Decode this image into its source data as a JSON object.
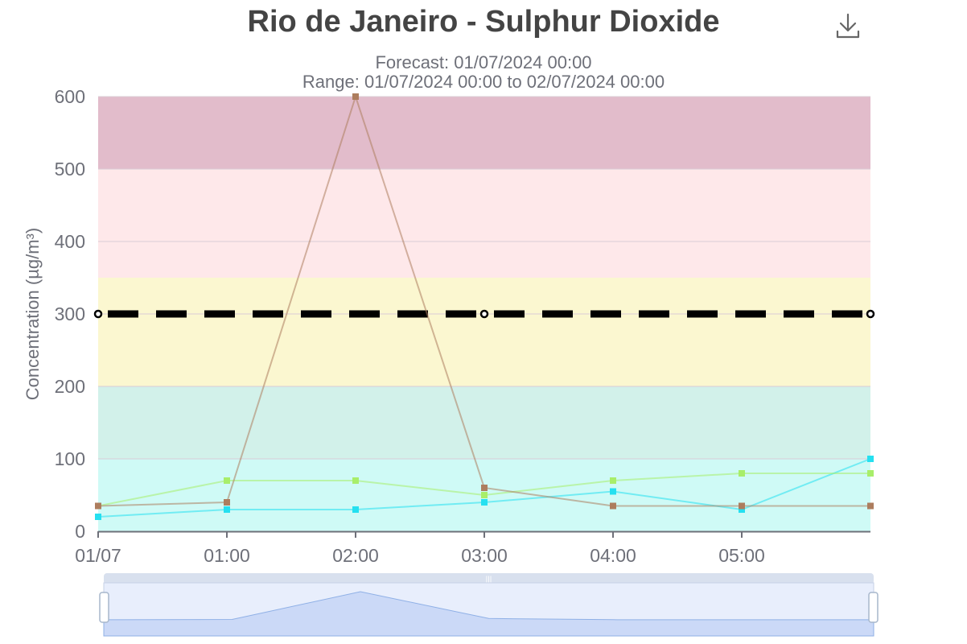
{
  "chart_data": {
    "type": "line",
    "title": "Rio de Janeiro - Sulphur Dioxide",
    "subtitle_lines": [
      "Forecast: 01/07/2024 00:00",
      "Range: 01/07/2024 00:00 to 02/07/2024 00:00"
    ],
    "ylabel": "Concentration (µg/m³)",
    "xlabel": "",
    "ylim": [
      0,
      600
    ],
    "y_ticks": [
      0,
      100,
      200,
      300,
      400,
      500,
      600
    ],
    "x_range_hours": [
      0,
      6
    ],
    "x_ticks": [
      {
        "hour": 0,
        "label": "01/07"
      },
      {
        "hour": 1,
        "label": "01:00"
      },
      {
        "hour": 2,
        "label": "02:00"
      },
      {
        "hour": 3,
        "label": "03:00"
      },
      {
        "hour": 4,
        "label": "04:00"
      },
      {
        "hour": 5,
        "label": "05:00"
      }
    ],
    "grid": true,
    "bands": [
      {
        "from": 0,
        "to": 100,
        "color": "#cffaf6"
      },
      {
        "from": 100,
        "to": 200,
        "color": "#d2f1ea"
      },
      {
        "from": 200,
        "to": 350,
        "color": "#fbf7d0"
      },
      {
        "from": 350,
        "to": 500,
        "color": "#fee8ea"
      },
      {
        "from": 500,
        "to": 600,
        "color": "#e2bccb"
      }
    ],
    "threshold": {
      "value": 300,
      "markers_at_hours": [
        0,
        3,
        6
      ],
      "color": "#000000"
    },
    "series": [
      {
        "color": "#25e0f0",
        "x": [
          0,
          1,
          2,
          3,
          4,
          5,
          6
        ],
        "values": [
          20,
          30,
          30,
          40,
          55,
          30,
          100
        ]
      },
      {
        "color": "#a8ee6a",
        "x": [
          0,
          1,
          2,
          3,
          4,
          5,
          6
        ],
        "values": [
          35,
          70,
          70,
          50,
          70,
          80,
          80
        ]
      },
      {
        "color": "#ad7d5e",
        "x": [
          0,
          1,
          2,
          3,
          4,
          5,
          6
        ],
        "values": [
          35,
          40,
          600,
          60,
          35,
          35,
          35
        ]
      }
    ],
    "navigator": {
      "series_index": 2,
      "window": [
        0,
        6
      ]
    }
  },
  "icons": {
    "download": "download-icon"
  }
}
